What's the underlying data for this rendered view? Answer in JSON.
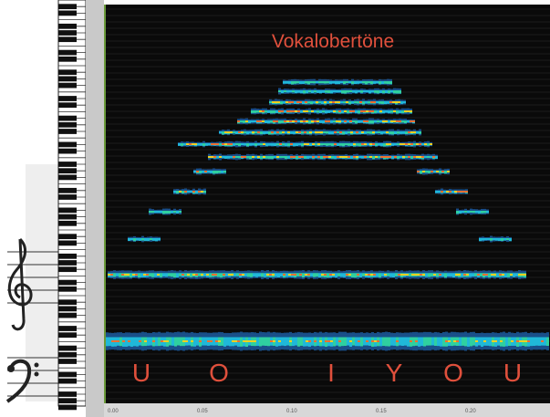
{
  "title": "Vokalobertöne",
  "vowels": [
    "U",
    "O",
    "I",
    "Y",
    "O",
    "U"
  ],
  "time_labels": [
    "0.00",
    "0.05",
    "0.10",
    "0.15",
    "0.20"
  ]
}
